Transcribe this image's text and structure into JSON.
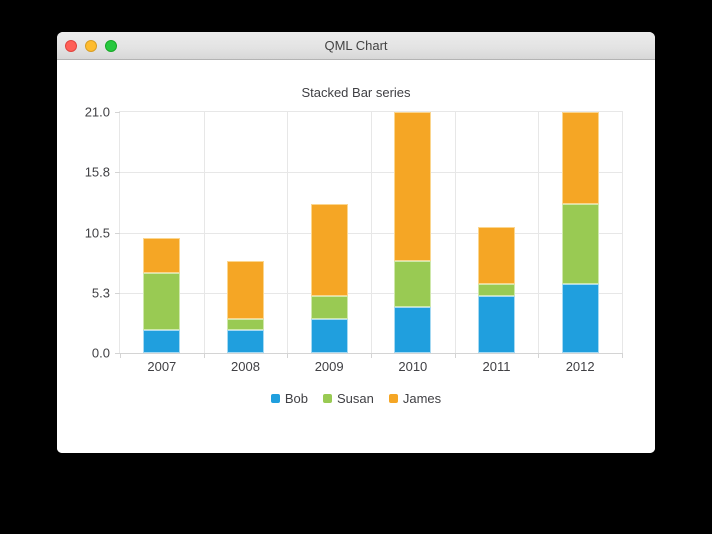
{
  "window": {
    "title": "QML Chart"
  },
  "chart_data": {
    "type": "bar",
    "stacked": true,
    "title": "Stacked Bar series",
    "categories": [
      "2007",
      "2008",
      "2009",
      "2010",
      "2011",
      "2012"
    ],
    "series": [
      {
        "name": "Bob",
        "color": "#209fde",
        "border_color": "#a6d9f2",
        "values": [
          2,
          2,
          3,
          4,
          5,
          6
        ]
      },
      {
        "name": "Susan",
        "color": "#99ca53",
        "border_color": "#cfe8ac",
        "values": [
          5,
          1,
          2,
          4,
          1,
          7
        ]
      },
      {
        "name": "James",
        "color": "#f5a625",
        "border_color": "#fbd68f",
        "values": [
          3,
          5,
          8,
          13,
          5,
          8
        ]
      }
    ],
    "totals": [
      10,
      8,
      13,
      21,
      11,
      21
    ],
    "y_axis": {
      "min": 0,
      "max": 21,
      "tick_labels": [
        "0.0",
        "5.3",
        "10.5",
        "15.8",
        "21.0"
      ]
    },
    "grid": true,
    "legend_position": "bottom"
  }
}
